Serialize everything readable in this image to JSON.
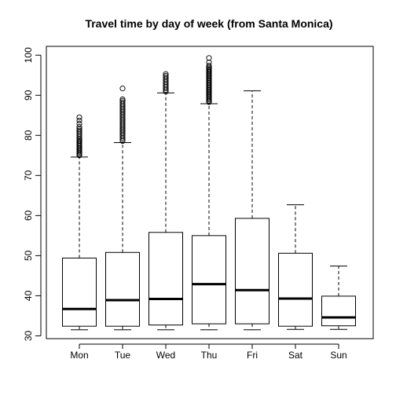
{
  "chart_data": {
    "type": "boxplot",
    "title": "Travel time by day of week (from Santa Monica)",
    "xlabel": "",
    "ylabel": "",
    "categories": [
      "Mon",
      "Tue",
      "Wed",
      "Thu",
      "Fri",
      "Sat",
      "Sun"
    ],
    "ylim": [
      29.3,
      102.2
    ],
    "yticks": [
      30,
      40,
      50,
      60,
      70,
      80,
      90,
      100
    ],
    "grid": false,
    "boxes": [
      {
        "label": "Mon",
        "whisker_low": 31.5,
        "q1": 32.4,
        "median": 36.7,
        "q3": 49.4,
        "whisker_high": 74.6,
        "outliers": [
          75.0,
          75.3,
          75.6,
          75.9,
          76.2,
          76.5,
          76.8,
          77.1,
          77.4,
          77.7,
          78.0,
          78.3,
          78.6,
          78.9,
          79.2,
          79.6,
          80.0,
          80.4,
          80.8,
          81.2,
          81.6,
          82.1,
          82.9,
          83.7,
          84.5
        ]
      },
      {
        "label": "Tue",
        "whisker_low": 31.5,
        "q1": 32.4,
        "median": 38.9,
        "q3": 50.8,
        "whisker_high": 78.2,
        "outliers": [
          78.6,
          79.0,
          79.4,
          79.8,
          80.2,
          80.6,
          81.0,
          81.4,
          81.8,
          82.2,
          82.6,
          83.0,
          83.4,
          83.8,
          84.2,
          84.6,
          85.0,
          85.4,
          85.8,
          86.2,
          86.6,
          87.0,
          87.4,
          87.8,
          88.2,
          88.6,
          89.0,
          91.7
        ]
      },
      {
        "label": "Wed",
        "whisker_low": 31.5,
        "q1": 32.7,
        "median": 39.2,
        "q3": 55.8,
        "whisker_high": 90.6,
        "outliers": [
          90.9,
          91.3,
          91.7,
          92.1,
          92.5,
          92.9,
          93.3,
          93.7,
          94.1,
          94.5,
          94.9,
          95.3
        ]
      },
      {
        "label": "Thu",
        "whisker_low": 31.5,
        "q1": 33.0,
        "median": 42.9,
        "q3": 55.0,
        "whisker_high": 87.9,
        "outliers": [
          88.3,
          88.6,
          88.9,
          89.2,
          89.5,
          89.8,
          90.1,
          90.4,
          90.7,
          91.0,
          91.3,
          91.6,
          91.9,
          92.2,
          92.5,
          92.8,
          93.1,
          93.4,
          93.7,
          94.0,
          94.3,
          94.6,
          94.9,
          95.2,
          95.5,
          95.8,
          96.1,
          96.4,
          96.7,
          97.0,
          97.4,
          98.2,
          99.3
        ]
      },
      {
        "label": "Fri",
        "whisker_low": 31.5,
        "q1": 33.0,
        "median": 41.4,
        "q3": 59.3,
        "whisker_high": 91.1,
        "outliers": []
      },
      {
        "label": "Sat",
        "whisker_low": 31.6,
        "q1": 32.4,
        "median": 39.3,
        "q3": 50.6,
        "whisker_high": 62.7,
        "outliers": []
      },
      {
        "label": "Sun",
        "whisker_low": 31.6,
        "q1": 32.5,
        "median": 34.6,
        "q3": 39.9,
        "whisker_high": 47.4,
        "outliers": []
      }
    ]
  }
}
